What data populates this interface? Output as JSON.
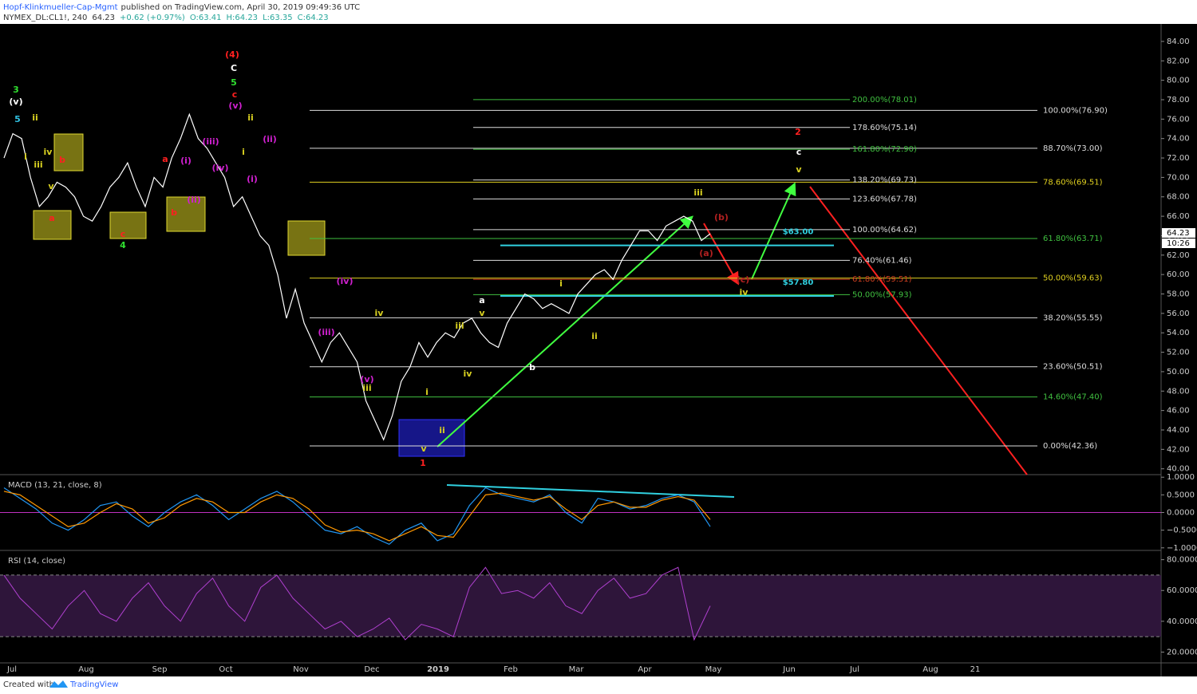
{
  "header": {
    "author": "Hopf-Klinkmueller-Cap-Mgmt",
    "published": "published on TradingView.com, April 30, 2019 09:49:36 UTC",
    "symbol": "NYMEX_DL:CL1!, 240",
    "last": "64.23",
    "change": "+0.62 (+0.97%)",
    "open": "O:63.41",
    "high": "H:64.23",
    "low": "L:63.35",
    "close": "C:64.23"
  },
  "footer": {
    "created": "Created with",
    "brand": "TradingView"
  },
  "price_tag": "64.23",
  "countdown": "10:26",
  "time_axis": [
    "Jul",
    "Aug",
    "Sep",
    "Oct",
    "Nov",
    "Dec",
    "2019",
    "Feb",
    "Mar",
    "Apr",
    "May",
    "Jun",
    "Jul",
    "Aug",
    "21"
  ],
  "chart_data": {
    "type": "line",
    "color": "#ffffff",
    "values": [
      72,
      74.5,
      74,
      70,
      67,
      68,
      69.5,
      69,
      68,
      66,
      65.5,
      67,
      69,
      70,
      71.5,
      69,
      67,
      70,
      69,
      72,
      74,
      76.5,
      74,
      73,
      71.5,
      70,
      67,
      68,
      66,
      64,
      63,
      60,
      55.5,
      58.5,
      55,
      53,
      51,
      53,
      54,
      52.5,
      51,
      47,
      45,
      43,
      45.5,
      49,
      50.5,
      53,
      51.5,
      53,
      54,
      53.5,
      55,
      55.5,
      54,
      53,
      52.5,
      55,
      56.5,
      58,
      57.5,
      56.5,
      57,
      56.5,
      56,
      58,
      59,
      60,
      60.5,
      59.5,
      61.5,
      63,
      64.5,
      64.5,
      63.5,
      65,
      65.5,
      66,
      65.5,
      63.5,
      64.2
    ],
    "ylim": [
      39.4,
      85.8
    ],
    "yticks": [
      {
        "value": 84,
        "label": "84.00"
      },
      {
        "value": 82,
        "label": "82.00"
      },
      {
        "value": 80,
        "label": "80.00"
      },
      {
        "value": 78,
        "label": "78.00"
      },
      {
        "value": 76,
        "label": "76.00"
      },
      {
        "value": 74,
        "label": "74.00"
      },
      {
        "value": 72,
        "label": "72.00"
      },
      {
        "value": 70,
        "label": "70.00"
      },
      {
        "value": 68,
        "label": "68.00"
      },
      {
        "value": 66,
        "label": "66.00"
      },
      {
        "value": 64,
        "label": "64.00"
      },
      {
        "value": 62,
        "label": "62.00"
      },
      {
        "value": 60,
        "label": "60.00"
      },
      {
        "value": 58,
        "label": "58.00"
      },
      {
        "value": 56,
        "label": "56.00"
      },
      {
        "value": 54,
        "label": "54.00"
      },
      {
        "value": 52,
        "label": "52.00"
      },
      {
        "value": 50,
        "label": "50.00"
      },
      {
        "value": 48,
        "label": "48.00"
      },
      {
        "value": 46,
        "label": "46.00"
      },
      {
        "value": 44,
        "label": "44.00"
      },
      {
        "value": 42,
        "label": "42.00"
      },
      {
        "value": 40,
        "label": "40.00"
      }
    ],
    "fibs_main": [
      {
        "label": "100.00%(76.90)",
        "price": 76.9,
        "color": "#dddddd"
      },
      {
        "label": "88.70%(73.00)",
        "price": 73.0,
        "color": "#dddddd"
      },
      {
        "label": "78.60%(69.51)",
        "price": 69.51,
        "color": "#e0d020"
      },
      {
        "label": "61.80%(63.71)",
        "price": 63.71,
        "color": "#40c040"
      },
      {
        "label": "50.00%(59.63)",
        "price": 59.63,
        "color": "#e0d020"
      },
      {
        "label": "38.20%(55.55)",
        "price": 55.55,
        "color": "#dddddd"
      },
      {
        "label": "23.60%(50.51)",
        "price": 50.51,
        "color": "#dddddd"
      },
      {
        "label": "14.60%(47.40)",
        "price": 47.4,
        "color": "#40c040"
      },
      {
        "label": "0.00%(42.36)",
        "price": 42.36,
        "color": "#dddddd"
      }
    ],
    "fibs_ext": [
      {
        "label": "200.00%(78.01)",
        "price": 78.01,
        "color": "#40c040"
      },
      {
        "label": "178.60%(75.14)",
        "price": 75.14,
        "color": "#dddddd"
      },
      {
        "label": "161.80%(72.90)",
        "price": 72.9,
        "color": "#40c040"
      },
      {
        "label": "138.20%(69.73)",
        "price": 69.73,
        "color": "#dddddd"
      },
      {
        "label": "123.60%(67.78)",
        "price": 67.78,
        "color": "#dddddd"
      },
      {
        "label": "100.00%(64.62)",
        "price": 64.62,
        "color": "#dddddd"
      },
      {
        "label": "76.40%(61.46)",
        "price": 61.46,
        "color": "#dddddd"
      },
      {
        "label": "61.80%(59.51)",
        "price": 59.51,
        "color": "#d04020"
      },
      {
        "label": "50.00%(57.93)",
        "price": 57.93,
        "color": "#40c040"
      }
    ],
    "levels": [
      {
        "label": "$63.00",
        "price": 63.0,
        "color": "#30d0e0"
      },
      {
        "label": "$57.80",
        "price": 57.8,
        "color": "#30d0e0"
      }
    ],
    "wave_labels": [
      {
        "text": "3",
        "color": "#30e030"
      },
      {
        "text": "(v)",
        "color": "#ffffff"
      },
      {
        "text": "5",
        "color": "#30c0e0"
      },
      {
        "text": "ii",
        "color": "#d8d020"
      },
      {
        "text": "i",
        "color": "#d8d020"
      },
      {
        "text": "iv",
        "color": "#d8d020"
      },
      {
        "text": "iii",
        "color": "#d8d020"
      },
      {
        "text": "v",
        "color": "#d8d020"
      },
      {
        "text": "b",
        "color": "#ff2020"
      },
      {
        "text": "a",
        "color": "#ff2020"
      },
      {
        "text": "c",
        "color": "#ff2020"
      },
      {
        "text": "4",
        "color": "#30e030"
      },
      {
        "text": "a",
        "color": "#ff2020"
      },
      {
        "text": "b",
        "color": "#ff2020"
      },
      {
        "text": "(i)",
        "color": "#d020d0"
      },
      {
        "text": "(ii)",
        "color": "#d020d0"
      },
      {
        "text": "(iii)",
        "color": "#d020d0"
      },
      {
        "text": "(iv)",
        "color": "#d020d0"
      },
      {
        "text": "(v)",
        "color": "#d020d0"
      },
      {
        "text": "c",
        "color": "#ff2020"
      },
      {
        "text": "5",
        "color": "#30e030"
      },
      {
        "text": "C",
        "color": "#ffffff"
      },
      {
        "text": "(4)",
        "color": "#ff2020"
      },
      {
        "text": "ii",
        "color": "#d8d020"
      },
      {
        "text": "i",
        "color": "#d8d020"
      },
      {
        "text": "(ii)",
        "color": "#d020d0"
      },
      {
        "text": "(i)",
        "color": "#d020d0"
      },
      {
        "text": "(iv)",
        "color": "#d020d0"
      },
      {
        "text": "(iii)",
        "color": "#d020d0"
      },
      {
        "text": "iv",
        "color": "#d8d020"
      },
      {
        "text": "(v)",
        "color": "#d020d0"
      },
      {
        "text": "iii",
        "color": "#d8d020"
      },
      {
        "text": "i",
        "color": "#d8d020"
      },
      {
        "text": "ii",
        "color": "#d8d020"
      },
      {
        "text": "v",
        "color": "#d8d020"
      },
      {
        "text": "1",
        "color": "#ff2020"
      },
      {
        "text": "iii",
        "color": "#d8d020"
      },
      {
        "text": "iv",
        "color": "#d8d020"
      },
      {
        "text": "a",
        "color": "#ffffff"
      },
      {
        "text": "v",
        "color": "#d8d020"
      },
      {
        "text": "b",
        "color": "#ffffff"
      },
      {
        "text": "i",
        "color": "#d8d020"
      },
      {
        "text": "ii",
        "color": "#d8d020"
      },
      {
        "text": "iii",
        "color": "#d8d020"
      },
      {
        "text": "(b)",
        "color": "#b02020"
      },
      {
        "text": "(a)",
        "color": "#b02020"
      },
      {
        "text": "(c)",
        "color": "#b02020"
      },
      {
        "text": "iv",
        "color": "#d8d020"
      },
      {
        "text": "v",
        "color": "#d8d020"
      },
      {
        "text": "c",
        "color": "#ffffff"
      },
      {
        "text": "2",
        "color": "#ff2020"
      }
    ]
  },
  "macd": {
    "title": "MACD (13, 21, close, 8)",
    "ylim": [
      -1.05,
      1.05
    ],
    "yticks": [
      {
        "value": 1,
        "label": "1.0000"
      },
      {
        "value": 0.5,
        "label": "0.5000"
      },
      {
        "value": 0,
        "label": "0.0000"
      },
      {
        "value": -0.5,
        "label": "−0.5000"
      },
      {
        "value": -1,
        "label": "−1.0000"
      }
    ],
    "series": [
      {
        "color": "#2196f3",
        "values": [
          0.7,
          0.4,
          0.1,
          -0.3,
          -0.5,
          -0.2,
          0.2,
          0.3,
          -0.1,
          -0.4,
          0.0,
          0.3,
          0.5,
          0.2,
          -0.2,
          0.1,
          0.4,
          0.6,
          0.3,
          -0.1,
          -0.5,
          -0.6,
          -0.4,
          -0.7,
          -0.9,
          -0.5,
          -0.3,
          -0.8,
          -0.6,
          0.2,
          0.7,
          0.5,
          0.4,
          0.3,
          0.5,
          0.0,
          -0.3,
          0.4,
          0.3,
          0.1,
          0.2,
          0.4,
          0.5,
          0.3,
          -0.4
        ]
      },
      {
        "color": "#ff9800",
        "values": [
          0.6,
          0.5,
          0.2,
          -0.1,
          -0.4,
          -0.3,
          0.0,
          0.25,
          0.1,
          -0.3,
          -0.15,
          0.2,
          0.4,
          0.3,
          0.0,
          0.0,
          0.3,
          0.5,
          0.4,
          0.1,
          -0.35,
          -0.55,
          -0.5,
          -0.6,
          -0.8,
          -0.6,
          -0.4,
          -0.65,
          -0.7,
          -0.1,
          0.5,
          0.55,
          0.45,
          0.35,
          0.45,
          0.1,
          -0.2,
          0.2,
          0.3,
          0.15,
          0.15,
          0.35,
          0.45,
          0.35,
          -0.2
        ]
      }
    ]
  },
  "rsi": {
    "title": "RSI (14, close)",
    "ylim": [
      13.5,
      85.5
    ],
    "band": [
      30,
      70
    ],
    "color": "#b040d0",
    "yticks": [
      {
        "value": 80,
        "label": "80.0000"
      },
      {
        "value": 60,
        "label": "60.0000"
      },
      {
        "value": 40,
        "label": "40.0000"
      },
      {
        "value": 20,
        "label": "20.0000"
      }
    ],
    "values": [
      70,
      55,
      45,
      35,
      50,
      60,
      45,
      40,
      55,
      65,
      50,
      40,
      58,
      68,
      50,
      40,
      62,
      70,
      55,
      45,
      35,
      40,
      30,
      35,
      42,
      28,
      38,
      35,
      30,
      62,
      75,
      58,
      60,
      55,
      65,
      50,
      45,
      60,
      68,
      55,
      58,
      70,
      75,
      28,
      50
    ]
  }
}
